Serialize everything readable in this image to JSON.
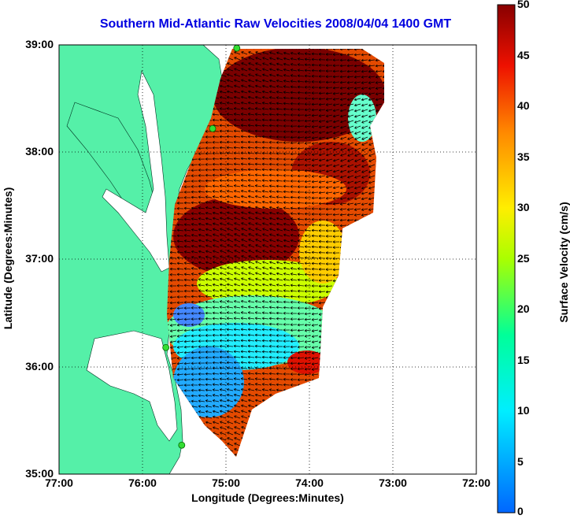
{
  "title": "Southern Mid-Atlantic Raw Velocities 2008/04/04 1400 GMT",
  "axes": {
    "xlabel": "Longitude (Degrees:Minutes)",
    "ylabel": "Latitude (Degrees:Minutes)",
    "x_ticks": [
      "77:00",
      "76:00",
      "75:00",
      "74:00",
      "73:00",
      "72:00"
    ],
    "y_ticks": [
      "39:00",
      "38:00",
      "37:00",
      "36:00",
      "35:00"
    ],
    "lon_range": [
      -77,
      -72
    ],
    "lat_range": [
      35,
      39
    ],
    "grid": "dotted"
  },
  "colorbar": {
    "label": "Surface Velocity (cm/s)",
    "ticks": [
      "50",
      "45",
      "40",
      "35",
      "30",
      "25",
      "20",
      "15",
      "10",
      "5",
      "0"
    ],
    "range": [
      0,
      50
    ],
    "colormap": "jet"
  },
  "colors": {
    "land": "#55f0a8",
    "water": "#ffffff",
    "title": "#0000e0"
  },
  "stations": [
    {
      "lon": -74.87,
      "lat": 38.97
    },
    {
      "lon": -75.16,
      "lat": 38.22
    },
    {
      "lon": -75.72,
      "lat": 36.18
    },
    {
      "lon": -75.53,
      "lat": 35.27
    }
  ]
}
